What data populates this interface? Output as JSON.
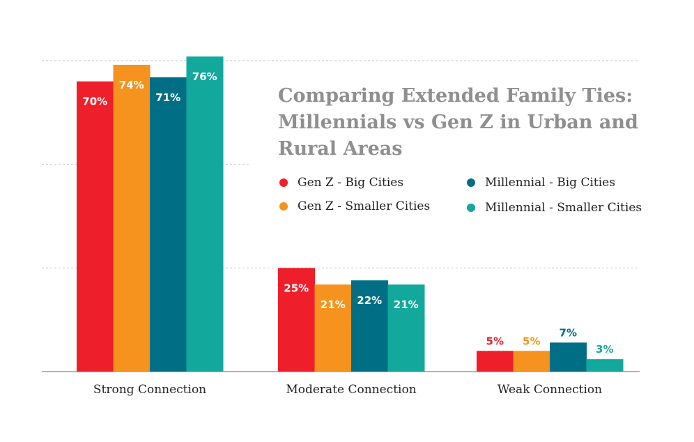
{
  "chart_data": {
    "type": "bar",
    "title": "Comparing Extended Family Ties: Millennials vs Gen Z in Urban and Rural Areas",
    "categories": [
      "Strong Connection",
      "Moderate Connection",
      "Weak Connection"
    ],
    "series": [
      {
        "name": "Gen Z - Big Cities",
        "color": "#ee1f2b",
        "values": [
          70,
          25,
          5
        ],
        "labels": [
          "70%",
          "25%",
          "5%"
        ]
      },
      {
        "name": "Gen Z - Smaller Cities",
        "color": "#f5931e",
        "values": [
          74,
          21,
          5
        ],
        "labels": [
          "74%",
          "21%",
          "5%"
        ]
      },
      {
        "name": "Millennial - Big Cities",
        "color": "#006f85",
        "values": [
          71,
          22,
          7
        ],
        "labels": [
          "71%",
          "22%",
          "7%"
        ]
      },
      {
        "name": "Millennial - Smaller Cities",
        "color": "#12a89c",
        "values": [
          76,
          21,
          3
        ],
        "labels": [
          "76%",
          "21%",
          "3%"
        ]
      }
    ],
    "ylim": [
      0,
      75
    ],
    "grid": true,
    "legend_position": "right, below title",
    "xlabel": "",
    "ylabel": ""
  }
}
